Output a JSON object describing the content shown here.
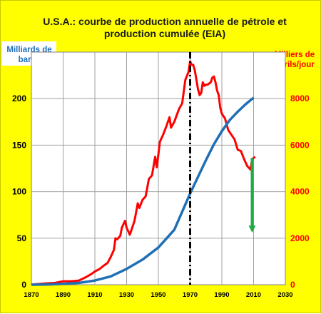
{
  "chart_data": {
    "type": "line",
    "title_line1": "U.S.A.: courbe de production annuelle de pétrole et",
    "title_line2": "production cumulée (EIA)",
    "ylabel_left_line1": "Milliards de",
    "ylabel_left_line2": "barils",
    "ylabel_right_line1": "Milliers de",
    "ylabel_right_line2": "barils/jour",
    "xlim": [
      1870,
      2030
    ],
    "x_ticks": [
      "1870",
      "1890",
      "1910",
      "1930",
      "1950",
      "1970",
      "1990",
      "2010",
      "2030"
    ],
    "ylim_left": [
      0,
      250
    ],
    "y_ticks_left": [
      "0",
      "50",
      "100",
      "150",
      "200"
    ],
    "ylim_right": [
      0,
      10000
    ],
    "y_ticks_right": [
      "0",
      "2000",
      "4000",
      "6000",
      "8000"
    ],
    "grid": true,
    "colors": {
      "background": "#ffff00",
      "plot_area": "#ffffff",
      "annual_production": "#ff0000",
      "cumulative_production": "#1f6fb5",
      "peak_line": "#000000",
      "decline_arrow": "#22aa44",
      "left_label_bg": "#ffffff",
      "left_label_text": "#2070c0",
      "right_label_text": "#ff0000",
      "right_tick_text": "#ff0000",
      "left_tick_text": "#000000"
    },
    "series": [
      {
        "axis": "right",
        "x": [
          1870,
          1880,
          1885,
          1890,
          1895,
          1900,
          1905,
          1908,
          1910,
          1913,
          1916,
          1918,
          1920,
          1922,
          1923,
          1924,
          1926,
          1927,
          1929,
          1930,
          1932,
          1935,
          1937,
          1938,
          1940,
          1942,
          1944,
          1946,
          1948,
          1949,
          1951,
          1953,
          1955,
          1957,
          1958,
          1960,
          1963,
          1965,
          1967,
          1969,
          1970,
          1971,
          1972,
          1973,
          1974,
          1975,
          1976,
          1977,
          1978,
          1979,
          1980,
          1981,
          1982,
          1983,
          1984,
          1985,
          1986,
          1987,
          1988,
          1989,
          1990,
          1992,
          1994,
          1996,
          1998,
          2000,
          2002,
          2004,
          2006,
          2008,
          2009,
          2010,
          2011
        ],
        "values": [
          10,
          60,
          80,
          150,
          150,
          180,
          350,
          470,
          570,
          680,
          840,
          940,
          1200,
          1500,
          2000,
          1950,
          2100,
          2450,
          2750,
          2450,
          2150,
          2750,
          3500,
          3300,
          3650,
          3800,
          4550,
          4700,
          5500,
          5050,
          6150,
          6450,
          6800,
          7200,
          6750,
          7000,
          7550,
          7800,
          8800,
          9150,
          9600,
          9450,
          9450,
          9200,
          8800,
          8400,
          8150,
          8250,
          8700,
          8550,
          8600,
          8600,
          8650,
          8700,
          8900,
          8950,
          8700,
          8350,
          8150,
          7600,
          7350,
          7150,
          6650,
          6450,
          6250,
          5800,
          5750,
          5400,
          5100,
          4950,
          5350,
          5450,
          5500
        ]
      },
      {
        "axis": "left",
        "x": [
          1870,
          1880,
          1890,
          1900,
          1910,
          1920,
          1930,
          1940,
          1950,
          1960,
          1970,
          1975,
          1980,
          1985,
          1990,
          1995,
          2000,
          2005,
          2010
        ],
        "values": [
          0,
          0.3,
          0.9,
          2,
          4.5,
          9,
          17,
          27,
          40,
          59,
          98,
          116,
          134,
          151,
          165,
          177,
          186,
          194,
          201
        ]
      }
    ],
    "peak_year": 1970,
    "decline_arrow": {
      "x": 2010,
      "y_from": 5450,
      "y_to": 2300
    }
  }
}
